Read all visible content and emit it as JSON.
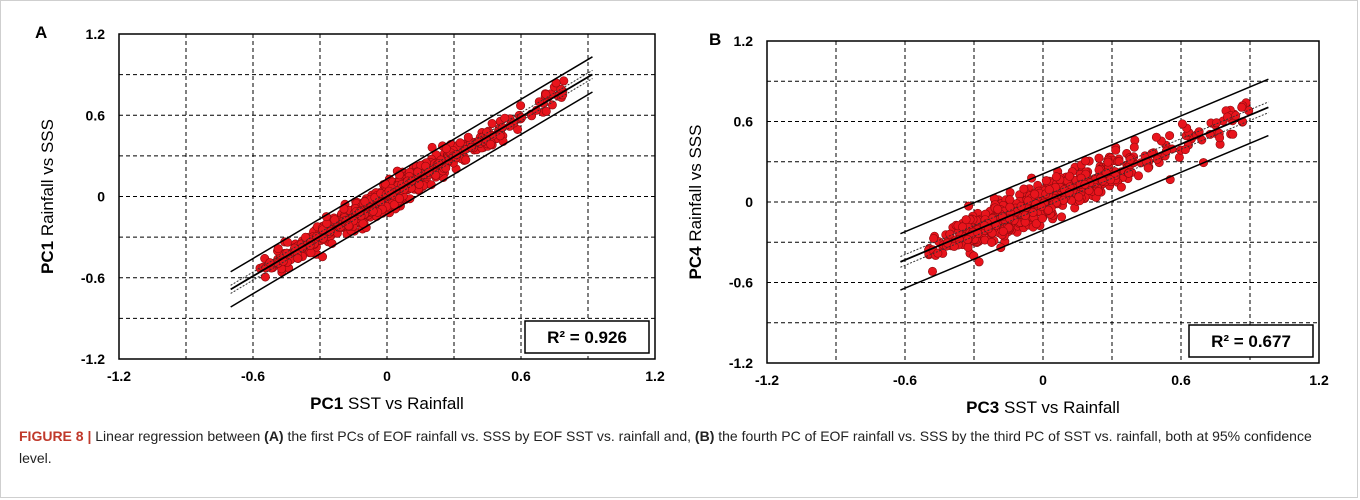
{
  "chart_data": [
    {
      "type": "scatter",
      "panel_label": "A",
      "xlabel_bold": "PC1",
      "xlabel_rest": " SST vs Rainfall",
      "ylabel_bold": "PC1",
      "ylabel_rest": " Rainfall vs SSS",
      "xlim": [
        -1.2,
        1.2
      ],
      "ylim": [
        -1.2,
        1.2
      ],
      "x_ticks": [
        "-1.2",
        "-0.6",
        "0",
        "0.6",
        "1.2"
      ],
      "y_ticks": [
        "1.2",
        "0.6",
        "0",
        "-0.6",
        "-1.2"
      ],
      "grid": true,
      "r2_label": "R² = 0.926",
      "fit": {
        "slope": 0.98,
        "intercept": 0.0,
        "x_range": [
          -0.7,
          0.92
        ]
      },
      "prediction_band": 0.13,
      "confidence_band": 0.03,
      "point_color": "#e8141c",
      "point_count": 700,
      "point_x_range": [
        -0.58,
        0.8
      ],
      "point_scatter_sd": 0.05
    },
    {
      "type": "scatter",
      "panel_label": "B",
      "xlabel_bold": "PC3",
      "xlabel_rest": " SST vs Rainfall",
      "ylabel_bold": "PC4",
      "ylabel_rest": " Rainfall vs SSS",
      "xlim": [
        -1.2,
        1.2
      ],
      "ylim": [
        -1.2,
        1.2
      ],
      "x_ticks": [
        "-1.2",
        "-0.6",
        "0",
        "0.6",
        "1.2"
      ],
      "y_ticks": [
        "1.2",
        "0.6",
        "0",
        "-0.6",
        "-1.2"
      ],
      "grid": true,
      "r2_label": "R² = 0.677",
      "fit": {
        "slope": 0.72,
        "intercept": 0.0,
        "x_range": [
          -0.62,
          0.98
        ]
      },
      "prediction_band": 0.21,
      "confidence_band": 0.04,
      "point_color": "#e8141c",
      "point_count": 650,
      "point_x_range": [
        -0.5,
        0.9
      ],
      "point_scatter_sd": 0.07
    }
  ],
  "caption": {
    "figure_label": "FIGURE 8 |",
    "t1": " Linear regression between ",
    "a": "(A)",
    "t2": " the first PCs of EOF rainfall vs. SSS by EOF SST vs. rainfall and, ",
    "b": "(B)",
    "t3": " the fourth PC of EOF rainfall vs. SSS by the third PC of SST vs. rainfall, both at 95% confidence level."
  }
}
